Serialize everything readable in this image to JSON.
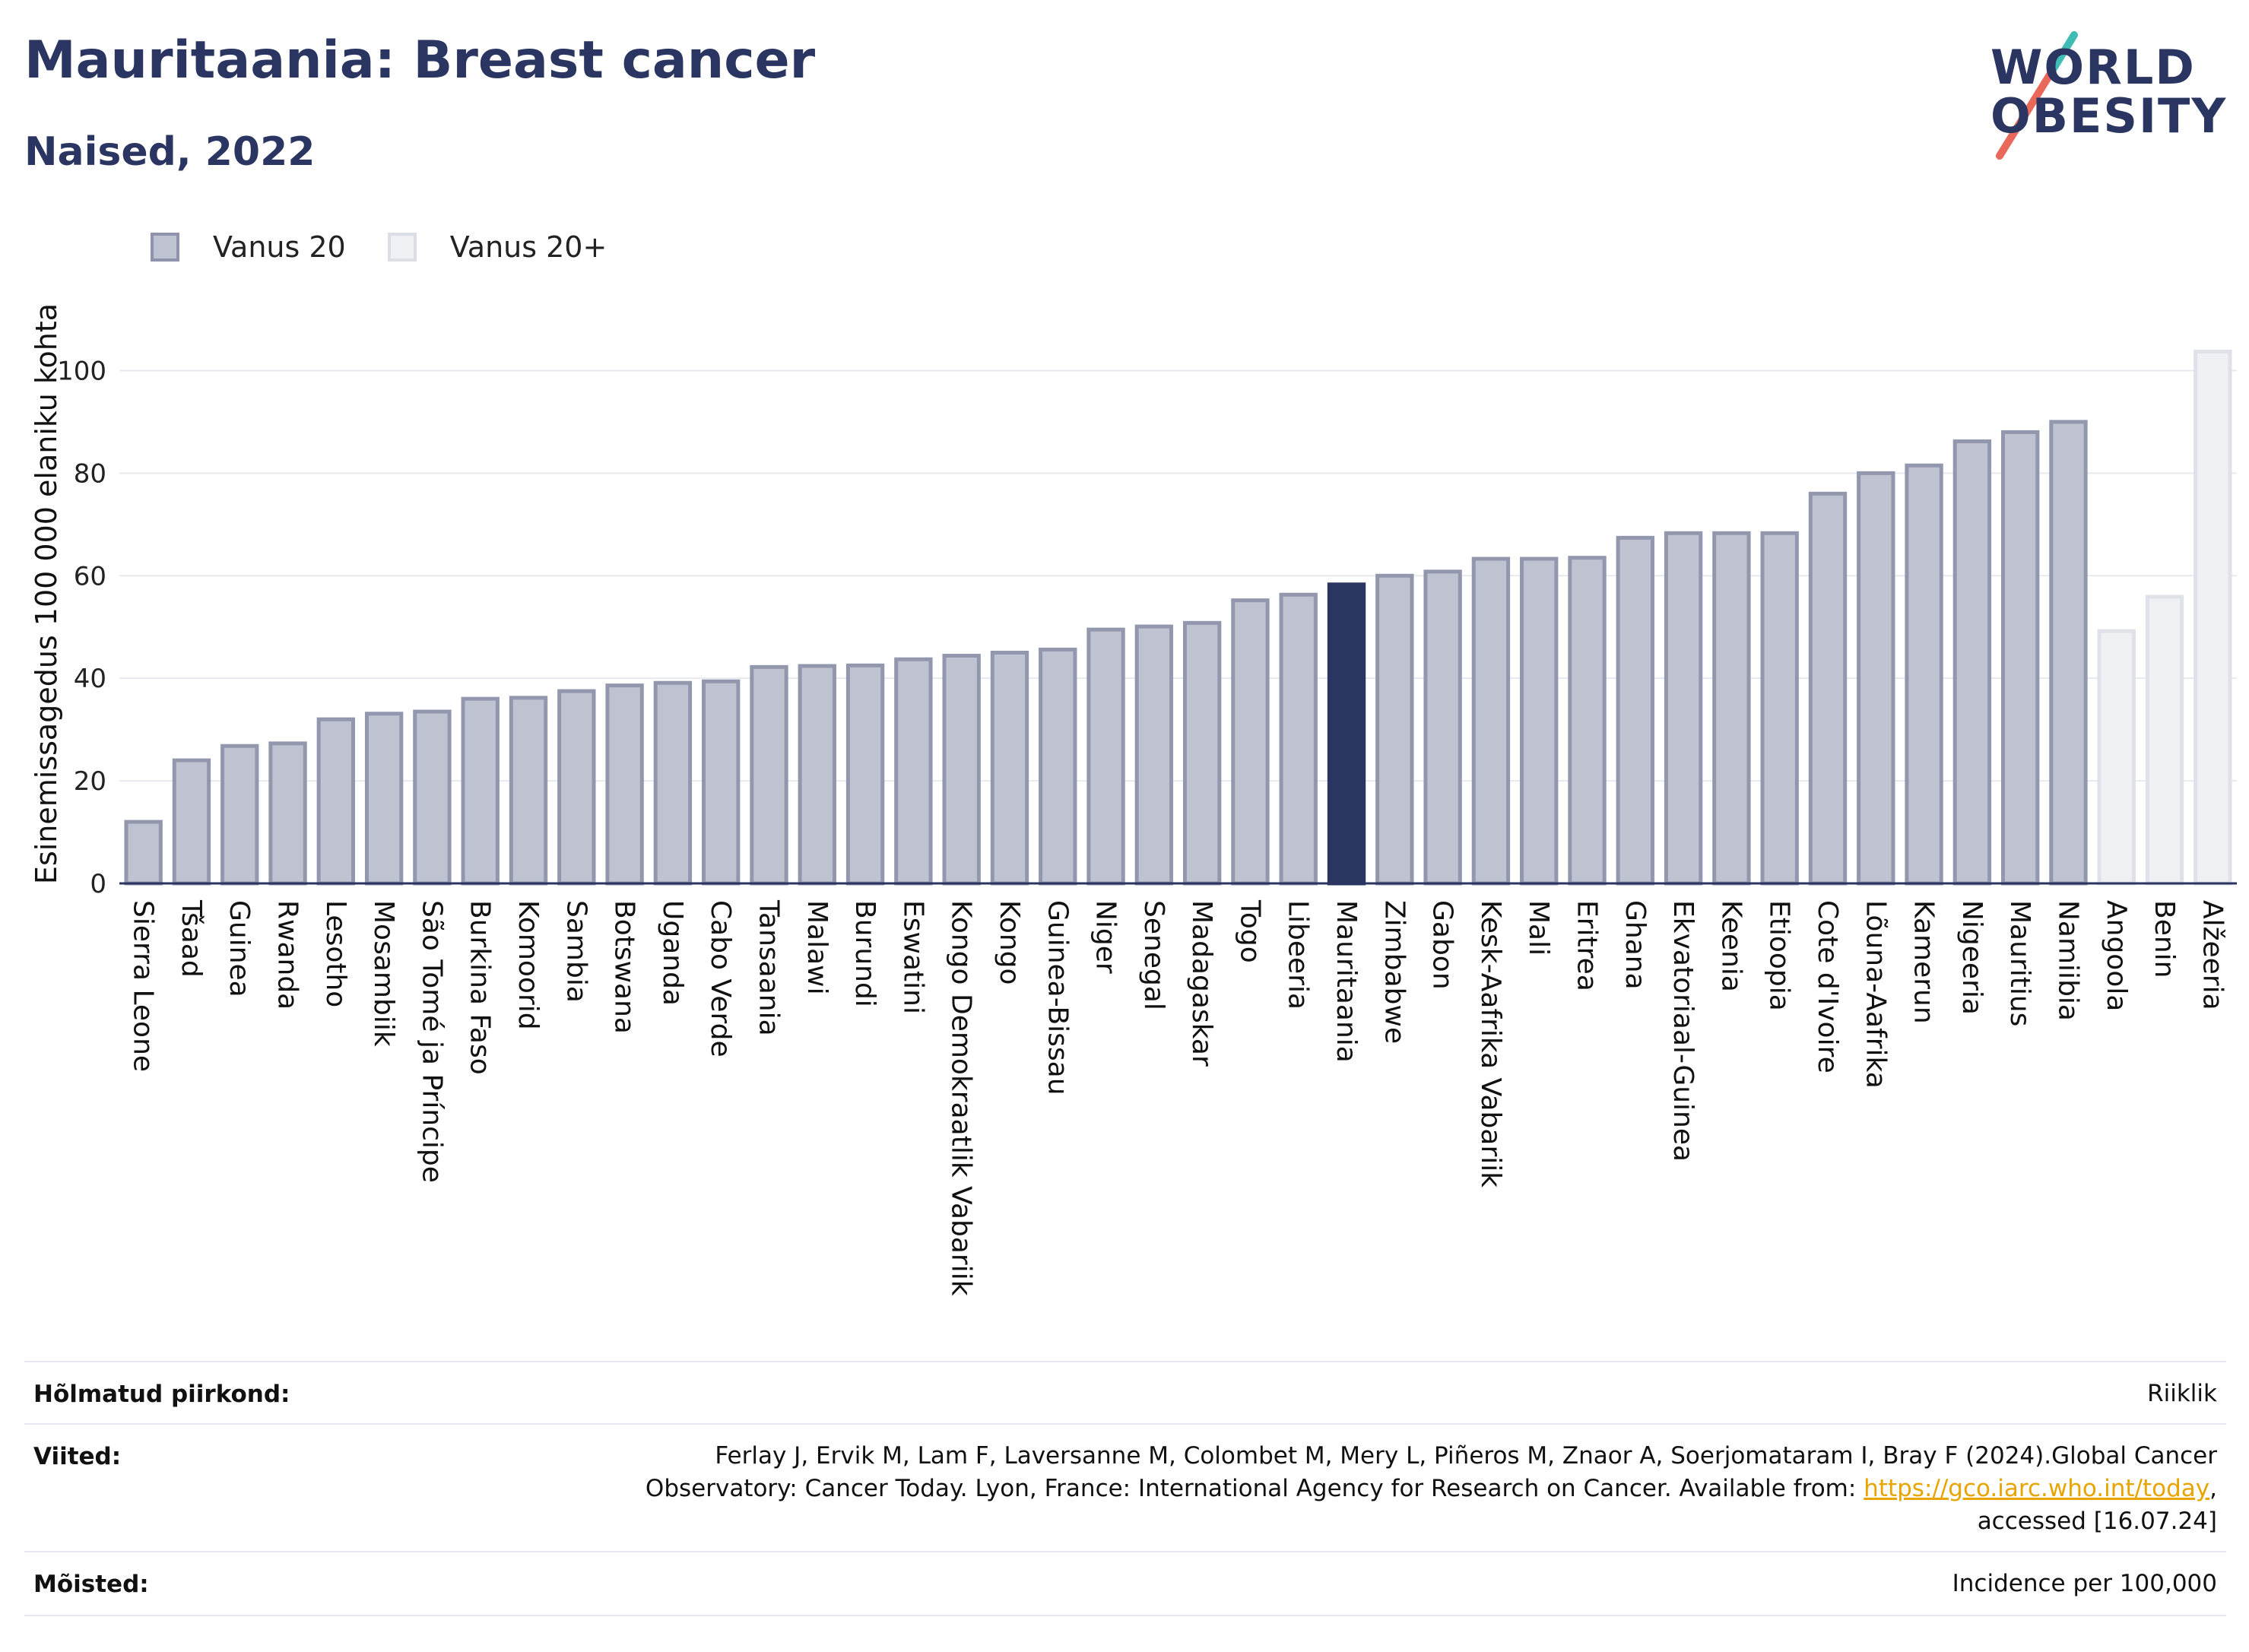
{
  "header": {
    "title": "Mauritaania: Breast cancer",
    "subtitle": "Naised, 2022"
  },
  "logo": {
    "line1": "WORLD",
    "line2": "OBESITY"
  },
  "legend": {
    "items": [
      {
        "label": "Vanus 20",
        "color": "#bfc2d0",
        "border": "#8e93ab"
      },
      {
        "label": "Vanus 20+",
        "color": "#eef0f4",
        "border": "#dcdee6"
      }
    ]
  },
  "chart_data": {
    "type": "bar",
    "ylabel": "Esinemissagedus 100 000 elaniku kohta",
    "ylim": [
      0,
      110
    ],
    "yticks": [
      0,
      20,
      40,
      60,
      80,
      100
    ],
    "grid": true,
    "legend_position": "top-left",
    "highlight": "Mauritaania",
    "colors": {
      "default_fill": "#bfc2d0",
      "default_stroke": "#9297ae",
      "highlight_fill": "#2b3561",
      "light_fill": "#eef0f4",
      "light_stroke": "#dfe1e8"
    },
    "categories": [
      "Sierra Leone",
      "Tšaad",
      "Guinea",
      "Rwanda",
      "Lesotho",
      "Mosambiik",
      "São Tomé ja Príncipe",
      "Burkina Faso",
      "Komoorid",
      "Sambia",
      "Botswana",
      "Uganda",
      "Cabo Verde",
      "Tansaania",
      "Malawi",
      "Burundi",
      "Eswatini",
      "Kongo Demokraatlik Vabariik",
      "Kongo",
      "Guinea-Bissau",
      "Niger",
      "Senegal",
      "Madagaskar",
      "Togo",
      "Libeeria",
      "Mauritaania",
      "Zimbabwe",
      "Gabon",
      "Kesk-Aafrika Vabariik",
      "Mali",
      "Eritrea",
      "Ghana",
      "Ekvatoriaal-Guinea",
      "Keenia",
      "Etioopia",
      "Cote d'Ivoire",
      "Lõuna-Aafrika",
      "Kamerun",
      "Nigeeria",
      "Mauritius",
      "Namiibia",
      "Angoola",
      "Benin",
      "Alžeeria"
    ],
    "values": [
      12.0,
      24.0,
      26.8,
      27.3,
      32.0,
      33.1,
      33.5,
      36.0,
      36.2,
      37.5,
      38.6,
      39.1,
      39.4,
      42.2,
      42.4,
      42.5,
      43.7,
      44.4,
      45.0,
      45.6,
      49.5,
      50.1,
      50.8,
      55.2,
      56.3,
      58.3,
      60.0,
      60.8,
      63.3,
      63.3,
      63.5,
      67.4,
      68.3,
      68.3,
      68.3,
      76.0,
      80.0,
      81.5,
      86.2,
      88.0,
      90.0,
      49.2,
      55.9,
      103.7
    ],
    "series_group": [
      "Vanus 20",
      "Vanus 20",
      "Vanus 20",
      "Vanus 20",
      "Vanus 20",
      "Vanus 20",
      "Vanus 20",
      "Vanus 20",
      "Vanus 20",
      "Vanus 20",
      "Vanus 20",
      "Vanus 20",
      "Vanus 20",
      "Vanus 20",
      "Vanus 20",
      "Vanus 20",
      "Vanus 20",
      "Vanus 20",
      "Vanus 20",
      "Vanus 20",
      "Vanus 20",
      "Vanus 20",
      "Vanus 20",
      "Vanus 20",
      "Vanus 20",
      "Vanus 20",
      "Vanus 20",
      "Vanus 20",
      "Vanus 20",
      "Vanus 20",
      "Vanus 20",
      "Vanus 20",
      "Vanus 20",
      "Vanus 20",
      "Vanus 20",
      "Vanus 20",
      "Vanus 20",
      "Vanus 20",
      "Vanus 20",
      "Vanus 20",
      "Vanus 20",
      "Vanus 20+",
      "Vanus 20+",
      "Vanus 20+"
    ]
  },
  "footer": {
    "region_label": "Hõlmatud piirkond:",
    "region_value": "Riiklik",
    "references_label": "Viited:",
    "references_line1": "Ferlay J, Ervik M, Lam F, Laversanne M, Colombet M, Mery L, Piñeros M, Znaor A, Soerjomataram I, Bray F (2024).Global Cancer",
    "references_line2": "Observatory: Cancer Today. Lyon, France: International Agency for Research on Cancer. Available from: ",
    "references_link": "https://gco.iarc.who.int/today",
    "references_line2_end": ",",
    "references_line3": "accessed [16.07.24]",
    "definitions_label": "Mõisted:",
    "definitions_value": "Incidence per 100,000"
  }
}
